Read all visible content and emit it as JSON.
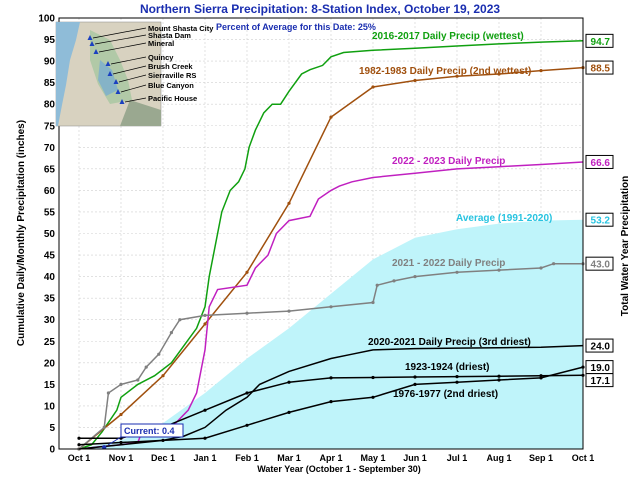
{
  "chart_data": {
    "type": "line",
    "title": "Northern Sierra Precipitation: 8-Station Index, October 19, 2023",
    "subtitle": "Percent of Average for this Date: 25%",
    "xlabel": "Water Year (October 1 - September 30)",
    "ylabel": "Cumulative Daily/Monthly Precipitation (inches)",
    "ylabel_right": "Total Water Year Precipitation",
    "ylim": [
      0,
      100
    ],
    "y_ticks": [
      0,
      5,
      10,
      15,
      20,
      25,
      30,
      35,
      40,
      45,
      50,
      55,
      60,
      65,
      70,
      75,
      80,
      85,
      90,
      95,
      100
    ],
    "x_ticks": [
      "Oct 1",
      "Nov 1",
      "Dec 1",
      "Jan 1",
      "Feb 1",
      "Mar 1",
      "Apr 1",
      "May 1",
      "Jun 1",
      "Jul 1",
      "Aug 1",
      "Sep 1",
      "Oct 1"
    ],
    "grid": true,
    "map": {
      "stations": [
        "Mount Shasta City",
        "Shasta Dam",
        "Mineral",
        "Quincy",
        "Brush Creek",
        "Sierraville RS",
        "Blue Canyon",
        "Pacific House"
      ]
    },
    "current_label": "Current: 0.4",
    "current_value": 0.4,
    "average": {
      "name": "Average (1991-2020)",
      "total": "53.2",
      "color": "#bff4fa",
      "label_color": "#27c3e0",
      "points": [
        [
          0,
          0
        ],
        [
          1,
          2
        ],
        [
          2,
          6
        ],
        [
          3,
          13
        ],
        [
          4,
          21
        ],
        [
          5,
          28
        ],
        [
          6,
          36
        ],
        [
          7,
          44
        ],
        [
          8,
          49
        ],
        [
          9,
          51
        ],
        [
          10,
          52.3
        ],
        [
          11,
          53
        ],
        [
          12,
          53.2
        ]
      ]
    },
    "series": [
      {
        "name": "2016-2017 Daily Precip (wettest)",
        "total": "94.7",
        "color": "#10a010",
        "points": [
          [
            0,
            0
          ],
          [
            0.3,
            1
          ],
          [
            0.55,
            4
          ],
          [
            0.9,
            9
          ],
          [
            1.0,
            12
          ],
          [
            1.4,
            15
          ],
          [
            1.8,
            17
          ],
          [
            2.2,
            20
          ],
          [
            2.5,
            24
          ],
          [
            2.8,
            28
          ],
          [
            3.0,
            33
          ],
          [
            3.1,
            40
          ],
          [
            3.3,
            50
          ],
          [
            3.4,
            55
          ],
          [
            3.6,
            60
          ],
          [
            3.8,
            62
          ],
          [
            3.95,
            65
          ],
          [
            4.05,
            70
          ],
          [
            4.2,
            74
          ],
          [
            4.4,
            78
          ],
          [
            4.6,
            80
          ],
          [
            4.8,
            80
          ],
          [
            5.0,
            83
          ],
          [
            5.3,
            87
          ],
          [
            5.5,
            88
          ],
          [
            5.8,
            89
          ],
          [
            6.0,
            91
          ],
          [
            6.3,
            92
          ],
          [
            7.0,
            92.5
          ],
          [
            8.0,
            93
          ],
          [
            9.0,
            93.5
          ],
          [
            10.0,
            94
          ],
          [
            11.0,
            94.4
          ],
          [
            12.0,
            94.7
          ]
        ]
      },
      {
        "name": "1982-1983 Daily Precip (2nd wettest)",
        "total": "88.5",
        "color": "#a0500e",
        "points": [
          [
            0,
            0
          ],
          [
            1,
            8
          ],
          [
            2,
            17
          ],
          [
            3,
            29
          ],
          [
            4,
            41
          ],
          [
            5,
            57
          ],
          [
            6,
            77
          ],
          [
            7,
            84
          ],
          [
            8,
            85.5
          ],
          [
            9,
            86.5
          ],
          [
            10,
            87
          ],
          [
            11,
            87.8
          ],
          [
            12,
            88.5
          ]
        ]
      },
      {
        "name": "2022 - 2023 Daily Precip",
        "total": "66.6",
        "color": "#c020c0",
        "points": [
          [
            0,
            0
          ],
          [
            0.5,
            0.5
          ],
          [
            1,
            1
          ],
          [
            1.4,
            1.5
          ],
          [
            1.5,
            4
          ],
          [
            2,
            5
          ],
          [
            2.3,
            6
          ],
          [
            2.6,
            9
          ],
          [
            2.8,
            13
          ],
          [
            3.0,
            23
          ],
          [
            3.1,
            33
          ],
          [
            3.3,
            37
          ],
          [
            4.0,
            38
          ],
          [
            4.2,
            42
          ],
          [
            4.5,
            45
          ],
          [
            4.7,
            50
          ],
          [
            5.0,
            53
          ],
          [
            5.5,
            54
          ],
          [
            5.7,
            58
          ],
          [
            6.0,
            60
          ],
          [
            6.2,
            61
          ],
          [
            6.5,
            62
          ],
          [
            7.0,
            63
          ],
          [
            8.0,
            64
          ],
          [
            9.0,
            65
          ],
          [
            10.0,
            65.5
          ],
          [
            11.0,
            66
          ],
          [
            12.0,
            66.6
          ]
        ]
      },
      {
        "name": "2021 - 2022 Daily Precip",
        "total": "43.0",
        "color": "#808080",
        "points": [
          [
            0,
            0
          ],
          [
            0.6,
            5
          ],
          [
            0.7,
            13
          ],
          [
            1,
            15
          ],
          [
            1.4,
            16
          ],
          [
            1.6,
            19
          ],
          [
            1.9,
            22
          ],
          [
            2.2,
            27
          ],
          [
            2.4,
            30
          ],
          [
            3,
            31
          ],
          [
            4,
            31.5
          ],
          [
            5,
            32
          ],
          [
            6,
            33
          ],
          [
            7,
            34
          ],
          [
            7.1,
            38
          ],
          [
            7.5,
            39
          ],
          [
            8,
            40
          ],
          [
            9,
            41
          ],
          [
            10,
            41.5
          ],
          [
            11,
            42
          ],
          [
            11.3,
            43
          ],
          [
            12,
            43.0
          ]
        ]
      },
      {
        "name": "2020-2021 Daily Precip (3rd driest)",
        "total": "24.0",
        "color": "#000000",
        "points": [
          [
            0,
            0
          ],
          [
            1,
            1
          ],
          [
            2,
            2
          ],
          [
            2.5,
            3
          ],
          [
            3,
            5
          ],
          [
            3.5,
            9
          ],
          [
            4,
            12
          ],
          [
            4.3,
            15
          ],
          [
            5,
            18
          ],
          [
            6,
            21
          ],
          [
            6.5,
            22
          ],
          [
            7,
            23
          ],
          [
            8,
            23.3
          ],
          [
            9,
            23.4
          ],
          [
            10,
            23.5
          ],
          [
            11,
            23.6
          ],
          [
            12,
            24.0
          ]
        ]
      },
      {
        "name": "1923-1924 (driest)",
        "total": "17.1",
        "color": "#000000",
        "points": [
          [
            0,
            2.5
          ],
          [
            1,
            2.5
          ],
          [
            2,
            5
          ],
          [
            3,
            9
          ],
          [
            4,
            13
          ],
          [
            5,
            15.5
          ],
          [
            6,
            16.5
          ],
          [
            7,
            16.6
          ],
          [
            8,
            16.7
          ],
          [
            9,
            16.8
          ],
          [
            10,
            16.9
          ],
          [
            11,
            17.0
          ],
          [
            12,
            17.1
          ]
        ]
      },
      {
        "name": "1976-1977 (2nd driest)",
        "total": "19.0",
        "color": "#000000",
        "points": [
          [
            0,
            1
          ],
          [
            1,
            1.5
          ],
          [
            2,
            2
          ],
          [
            3,
            2.5
          ],
          [
            4,
            5.5
          ],
          [
            5,
            8.5
          ],
          [
            6,
            11
          ],
          [
            7,
            12
          ],
          [
            8,
            15
          ],
          [
            9,
            15.5
          ],
          [
            10,
            16
          ],
          [
            11,
            16.5
          ],
          [
            12,
            19.0
          ]
        ]
      }
    ]
  }
}
